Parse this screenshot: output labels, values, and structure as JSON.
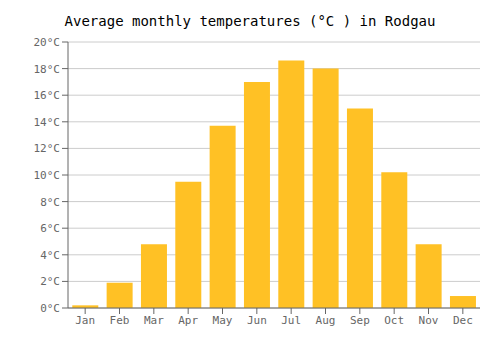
{
  "chart_data": {
    "type": "bar",
    "title": "Average monthly temperatures (°C ) in Rodgau",
    "categories": [
      "Jan",
      "Feb",
      "Mar",
      "Apr",
      "May",
      "Jun",
      "Jul",
      "Aug",
      "Sep",
      "Oct",
      "Nov",
      "Dec"
    ],
    "values": [
      0.2,
      1.9,
      4.8,
      9.5,
      13.7,
      17.0,
      18.6,
      18.0,
      15.0,
      10.2,
      4.8,
      0.9
    ],
    "color": "#FFC125",
    "ylim": [
      0,
      20
    ],
    "yticks": [
      {
        "value": 0,
        "label": "0°C"
      },
      {
        "value": 2,
        "label": "2°C"
      },
      {
        "value": 4,
        "label": "4°C"
      },
      {
        "value": 6,
        "label": "6°C"
      },
      {
        "value": 8,
        "label": "8°C"
      },
      {
        "value": 10,
        "label": "10°C"
      },
      {
        "value": 12,
        "label": "12°C"
      },
      {
        "value": 14,
        "label": "14°C"
      },
      {
        "value": 16,
        "label": "16°C"
      },
      {
        "value": 18,
        "label": "18°C"
      },
      {
        "value": 20,
        "label": "20°C"
      }
    ],
    "grid": true
  }
}
